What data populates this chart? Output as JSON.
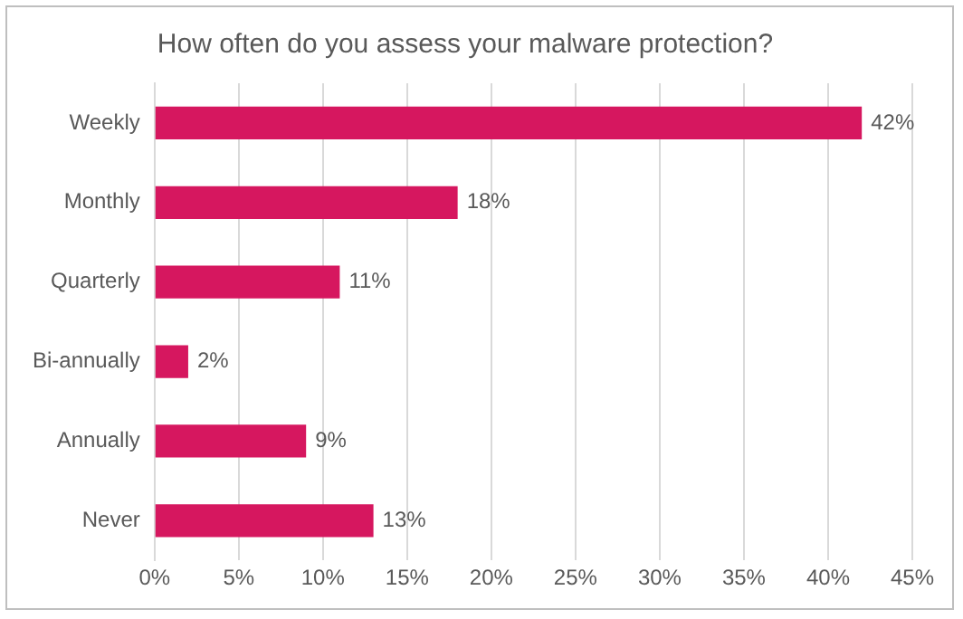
{
  "chart_data": {
    "type": "bar",
    "orientation": "horizontal",
    "title": "How often do you assess your malware protection?",
    "categories": [
      "Weekly",
      "Monthly",
      "Quarterly",
      "Bi-annually",
      "Annually",
      "Never"
    ],
    "values": [
      42,
      18,
      11,
      2,
      9,
      13
    ],
    "color": "#d6175f",
    "value_labels": [
      "42%",
      "18%",
      "11%",
      "2%",
      "9%",
      "13%"
    ],
    "xlim": [
      0,
      45
    ],
    "xticks": [
      {
        "value": 0,
        "label": "0%"
      },
      {
        "value": 5,
        "label": "5%"
      },
      {
        "value": 10,
        "label": "10%"
      },
      {
        "value": 15,
        "label": "15%"
      },
      {
        "value": 20,
        "label": "20%"
      },
      {
        "value": 25,
        "label": "25%"
      },
      {
        "value": 30,
        "label": "30%"
      },
      {
        "value": 35,
        "label": "35%"
      },
      {
        "value": 40,
        "label": "40%"
      },
      {
        "value": 45,
        "label": "45%"
      }
    ],
    "grid": "x"
  }
}
